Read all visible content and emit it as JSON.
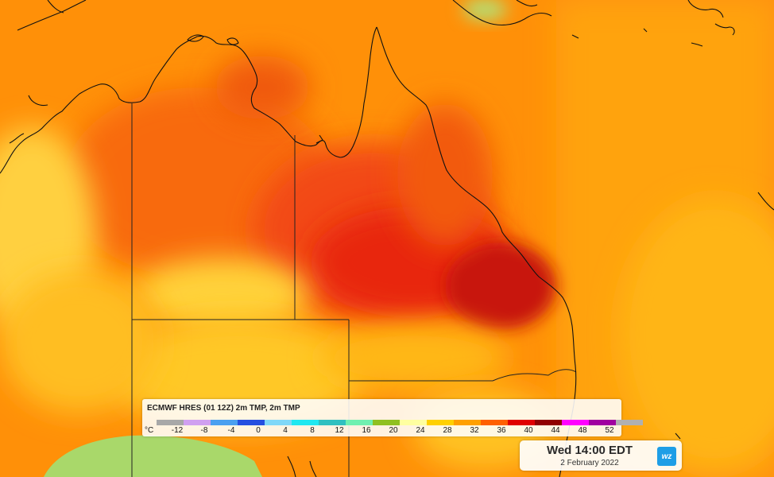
{
  "map": {
    "field_colors": {
      "deep_red": "#c40e0a",
      "red": "#e8220f",
      "red_orange": "#f24a12",
      "orange": "#ff8a05",
      "amber": "#ffa708",
      "yellow": "#ffc21a",
      "pale_yellow": "#ffe47a",
      "green_land": "#a9d86a",
      "coastline": "#111111"
    }
  },
  "legend": {
    "title": "ECMWF HRES (01 12Z) 2m TMP, 2m TMP",
    "unit": "°C",
    "ticks": [
      "-12",
      "-8",
      "-4",
      "0",
      "4",
      "8",
      "12",
      "16",
      "20",
      "24",
      "28",
      "32",
      "36",
      "40",
      "44",
      "48",
      "52"
    ],
    "colors": [
      "#a8a8a8",
      "#d0a0f0",
      "#4aa0f0",
      "#2550e0",
      "#80d8f8",
      "#20e8f0",
      "#30c0c0",
      "#70f0b0",
      "#90c020",
      "#ffffa0",
      "#ffd000",
      "#ffa000",
      "#ff6000",
      "#e00000",
      "#900000",
      "#ff00ff",
      "#a000a0",
      "#b0b0b0"
    ]
  },
  "time_box": {
    "main": "Wed 14:00 EDT",
    "date": "2 February 2022",
    "logo_text": "wz",
    "logo_icon": "weatherzone-logo-icon",
    "logo_color": "#1e9ee6"
  }
}
